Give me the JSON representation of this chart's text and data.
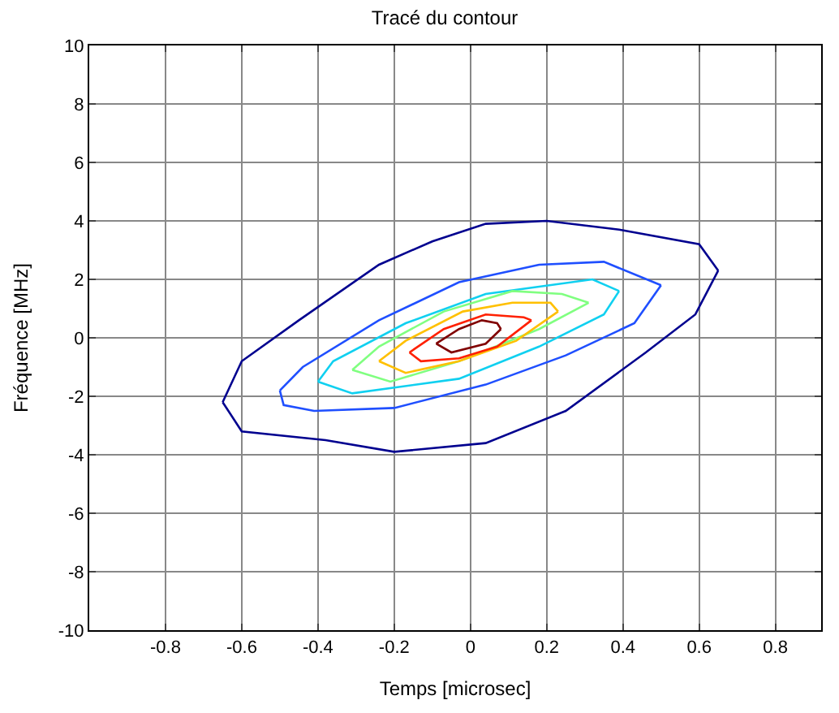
{
  "chart_data": {
    "type": "line",
    "title": "Tracé du contour",
    "xlabel": "Temps [microsec]",
    "ylabel": "Fréquence [MHz]",
    "xlim": [
      -1,
      0.92
    ],
    "ylim": [
      -10,
      10
    ],
    "xticks": [
      -0.8,
      -0.6,
      -0.4,
      -0.2,
      0,
      0.2,
      0.4,
      0.6,
      0.8
    ],
    "yticks": [
      -10,
      -8,
      -6,
      -4,
      -2,
      0,
      2,
      4,
      6,
      8,
      10
    ],
    "grid": true,
    "marker": "none",
    "line_style": "solid",
    "series": [
      {
        "color": "#00008f",
        "x": [
          -0.65,
          -0.6,
          -0.45,
          -0.24,
          -0.1,
          0.04,
          0.2,
          0.39,
          0.6,
          0.65
        ],
        "values": [
          -2.2,
          -0.8,
          0.6,
          2.5,
          3.3,
          3.9,
          4.0,
          3.7,
          3.2,
          2.3
        ]
      },
      {
        "color": "#00008f",
        "x": [
          -0.65,
          -0.6,
          -0.38,
          -0.2,
          0.04,
          0.25,
          0.46,
          0.59,
          0.65
        ],
        "values": [
          -2.2,
          -3.2,
          -3.5,
          -3.9,
          -3.6,
          -2.5,
          -0.5,
          0.8,
          2.3
        ]
      },
      {
        "color": "#1f4fff",
        "x": [
          -0.5,
          -0.44,
          -0.24,
          -0.03,
          0.18,
          0.35,
          0.5
        ],
        "values": [
          -1.8,
          -1.0,
          0.6,
          1.9,
          2.5,
          2.6,
          1.8
        ]
      },
      {
        "color": "#1f4fff",
        "x": [
          -0.5,
          -0.49,
          -0.41,
          -0.2,
          0.04,
          0.25,
          0.43,
          0.5
        ],
        "values": [
          -1.8,
          -2.3,
          -2.5,
          -2.4,
          -1.6,
          -0.6,
          0.5,
          1.8
        ]
      },
      {
        "color": "#10d0f0",
        "x": [
          -0.4,
          -0.36,
          -0.17,
          0.04,
          0.32,
          0.39
        ],
        "values": [
          -1.5,
          -0.8,
          0.5,
          1.5,
          2.0,
          1.6
        ]
      },
      {
        "color": "#10d0f0",
        "x": [
          -0.4,
          -0.31,
          -0.03,
          0.18,
          0.35,
          0.39
        ],
        "values": [
          -1.5,
          -1.9,
          -1.4,
          -0.3,
          0.8,
          1.6
        ]
      },
      {
        "color": "#80ff80",
        "x": [
          -0.31,
          -0.24,
          -0.07,
          0.11,
          0.24,
          0.31
        ],
        "values": [
          -1.1,
          -0.3,
          0.9,
          1.6,
          1.5,
          1.2
        ]
      },
      {
        "color": "#80ff80",
        "x": [
          -0.31,
          -0.21,
          -0.03,
          0.18,
          0.31
        ],
        "values": [
          -1.1,
          -1.5,
          -0.8,
          0.3,
          1.2
        ]
      },
      {
        "color": "#ffc000",
        "x": [
          -0.24,
          -0.17,
          -0.02,
          0.11,
          0.21,
          0.23
        ],
        "values": [
          -0.8,
          -0.1,
          0.9,
          1.2,
          1.2,
          0.9
        ]
      },
      {
        "color": "#ffc000",
        "x": [
          -0.24,
          -0.17,
          -0.03,
          0.12,
          0.23
        ],
        "values": [
          -0.8,
          -1.2,
          -0.8,
          -0.1,
          0.9
        ]
      },
      {
        "color": "#ff2000",
        "x": [
          -0.16,
          -0.07,
          0.04,
          0.14,
          0.16
        ],
        "values": [
          -0.5,
          0.3,
          0.8,
          0.7,
          0.6
        ]
      },
      {
        "color": "#ff2000",
        "x": [
          -0.16,
          -0.13,
          -0.03,
          0.07,
          0.16
        ],
        "values": [
          -0.5,
          -0.8,
          -0.7,
          -0.3,
          0.6
        ]
      },
      {
        "color": "#800000",
        "x": [
          -0.09,
          -0.03,
          0.03,
          0.07,
          0.08
        ],
        "values": [
          -0.2,
          0.3,
          0.6,
          0.5,
          0.3
        ]
      },
      {
        "color": "#800000",
        "x": [
          -0.09,
          -0.05,
          0.04,
          0.08
        ],
        "values": [
          -0.2,
          -0.5,
          -0.2,
          0.3
        ]
      }
    ]
  }
}
